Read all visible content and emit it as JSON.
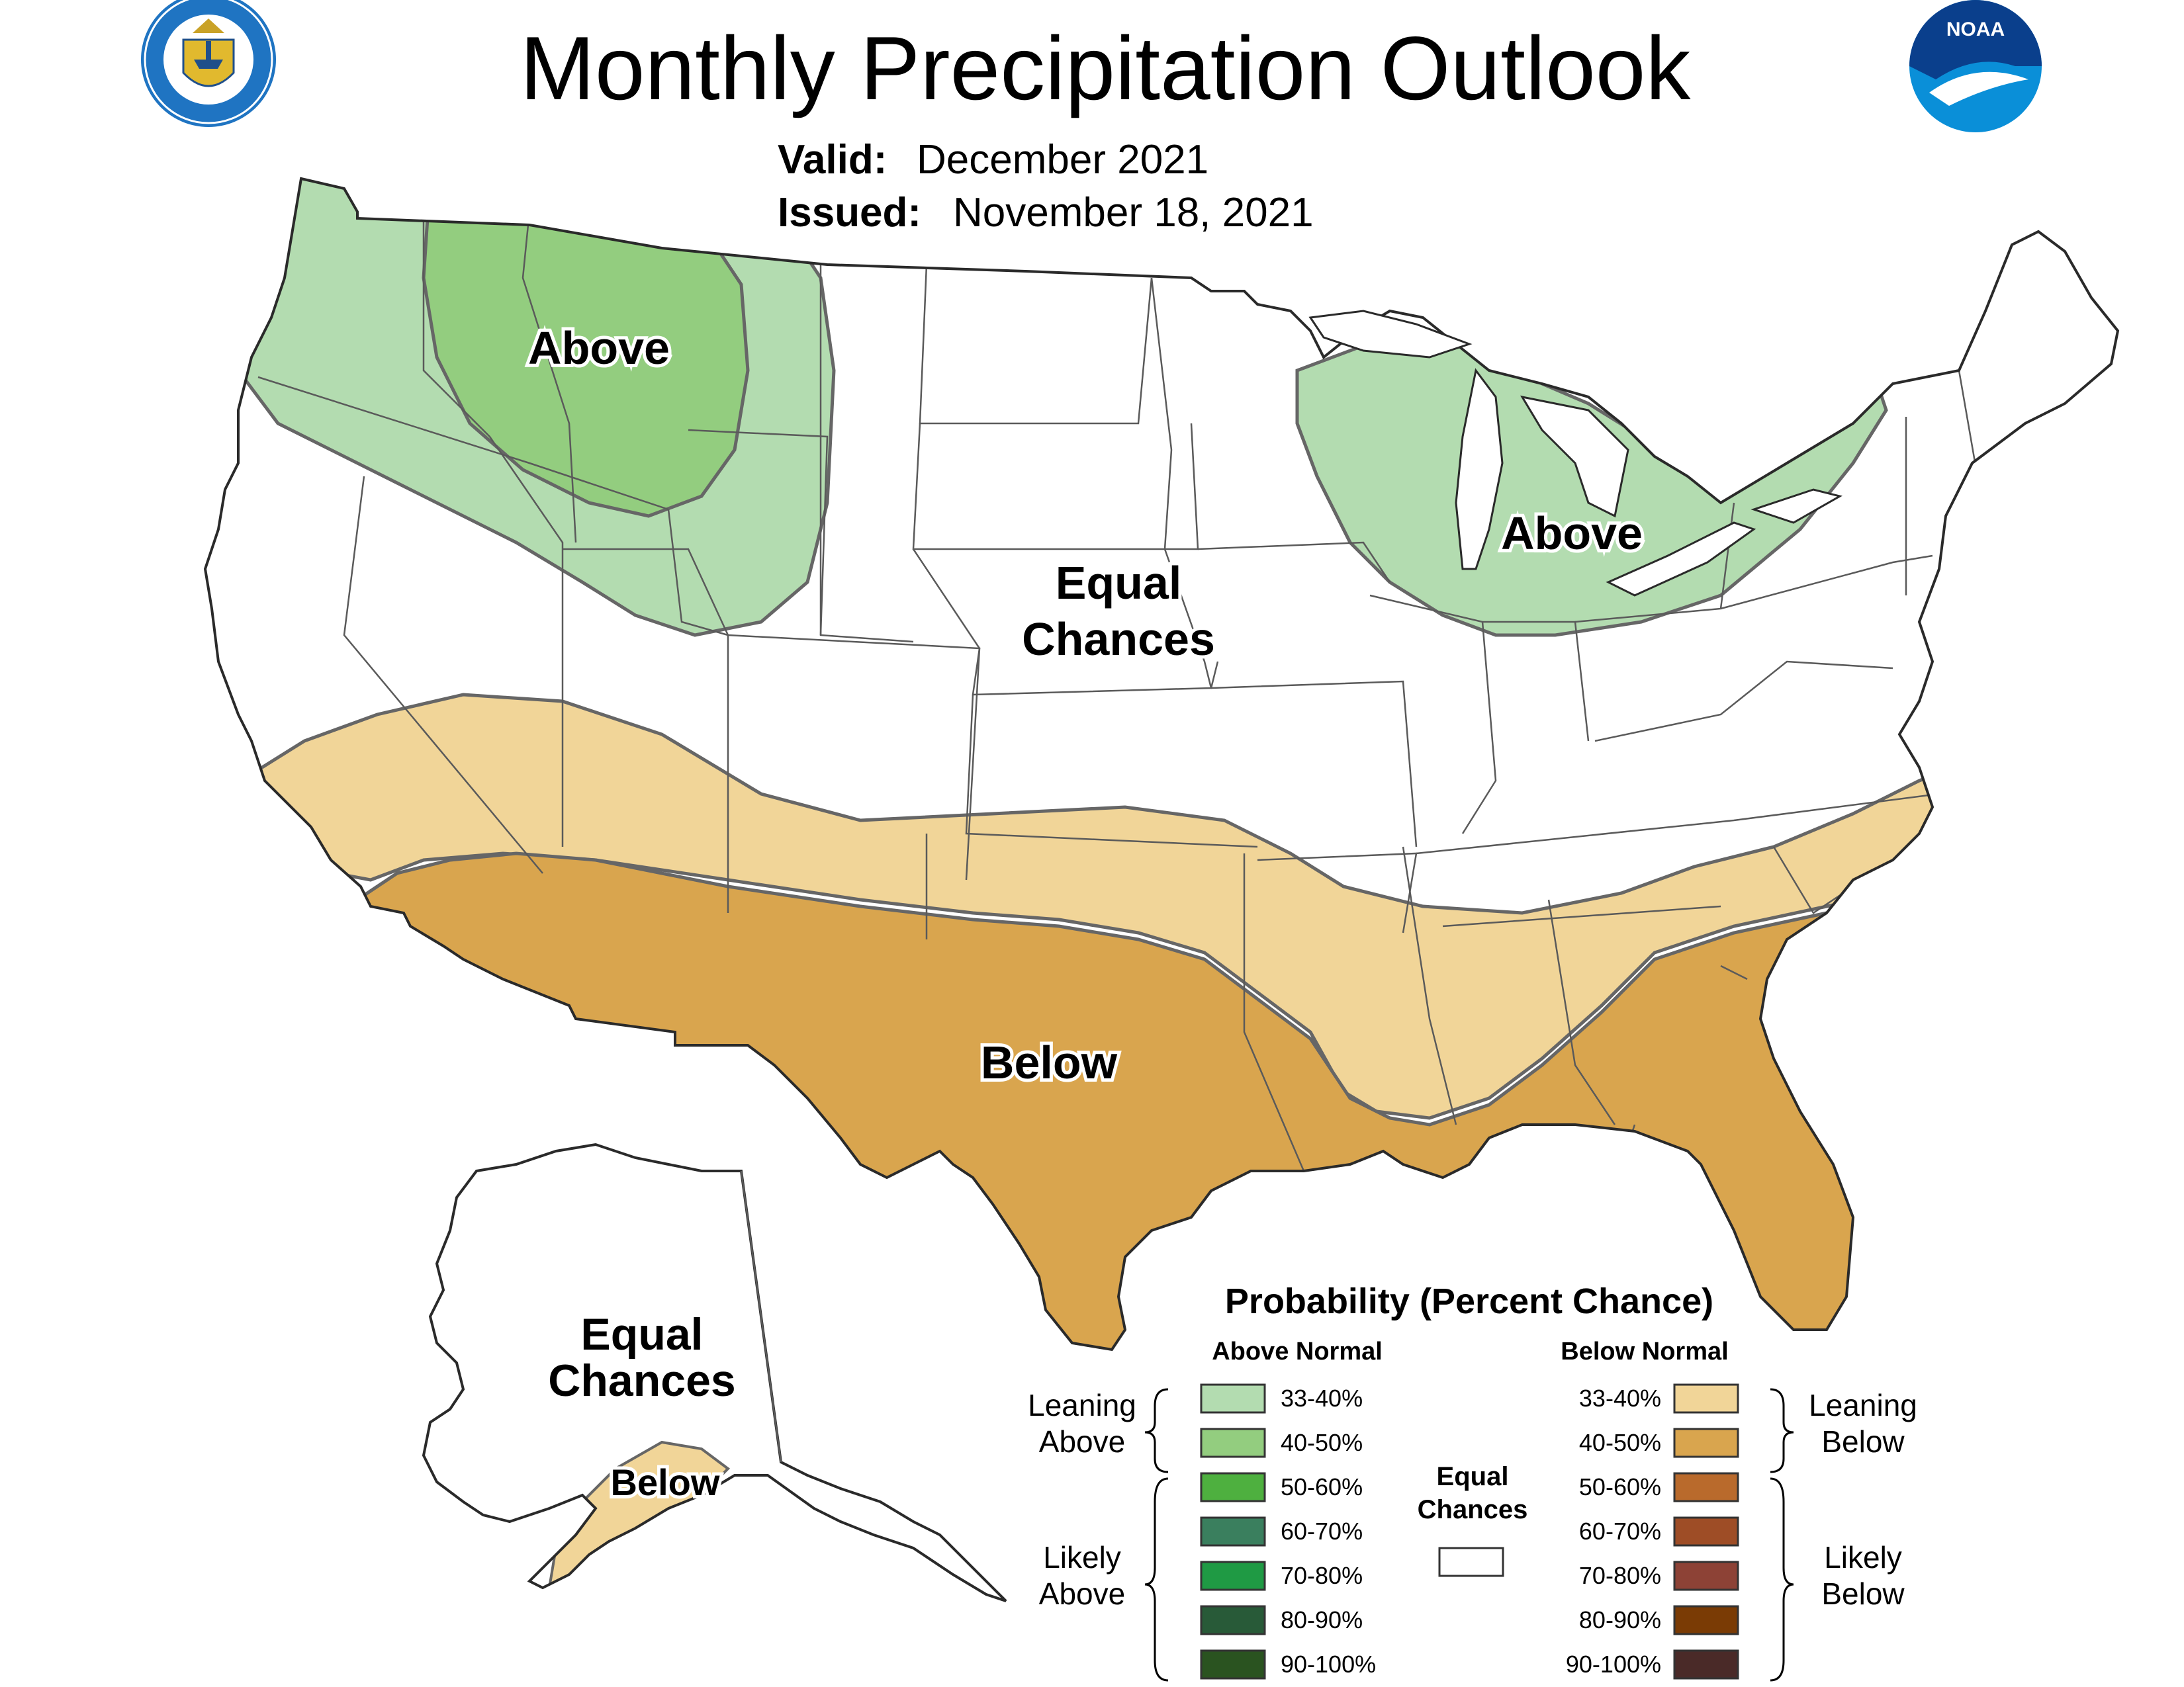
{
  "title": "Monthly Precipitation Outlook",
  "valid_label": "Valid:",
  "valid_value": "December 2021",
  "issued_label": "Issued:",
  "issued_value": "November 18, 2021",
  "colors": {
    "above_33_40": "#b3dcb0",
    "above_40_50": "#93cd7f",
    "above_50_60": "#4eb03f",
    "above_60_70": "#3a7f5e",
    "above_70_80": "#1f9a44",
    "above_80_90": "#285a38",
    "above_90_100": "#2a5320",
    "below_33_40": "#f1d598",
    "below_40_50": "#d9a54e",
    "below_50_60": "#b96a2c",
    "below_60_70": "#9e4d26",
    "below_70_80": "#8d4236",
    "below_80_90": "#7a3b05",
    "below_90_100": "#4a2a28",
    "equal_chances": "#ffffff"
  },
  "map_labels": {
    "nw_above": "Above",
    "gl_above": "Above",
    "center_ec_line1": "Equal",
    "center_ec_line2": "Chances",
    "south_below": "Below",
    "ak_ec_line1": "Equal",
    "ak_ec_line2": "Chances",
    "ak_below": "Below"
  },
  "legend": {
    "title": "Probability (Percent Chance)",
    "above_header": "Above Normal",
    "below_header": "Below Normal",
    "leaning_above_line1": "Leaning",
    "leaning_above_line2": "Above",
    "likely_above_line1": "Likely",
    "likely_above_line2": "Above",
    "leaning_below_line1": "Leaning",
    "leaning_below_line2": "Below",
    "likely_below_line1": "Likely",
    "likely_below_line2": "Below",
    "equal_line1": "Equal",
    "equal_line2": "Chances",
    "above_ranges": [
      "33-40%",
      "40-50%",
      "50-60%",
      "60-70%",
      "70-80%",
      "80-90%",
      "90-100%"
    ],
    "below_ranges": [
      "33-40%",
      "40-50%",
      "50-60%",
      "60-70%",
      "70-80%",
      "80-90%",
      "90-100%"
    ]
  },
  "logos": {
    "left": "department-of-commerce-seal",
    "right": "noaa-logo"
  }
}
